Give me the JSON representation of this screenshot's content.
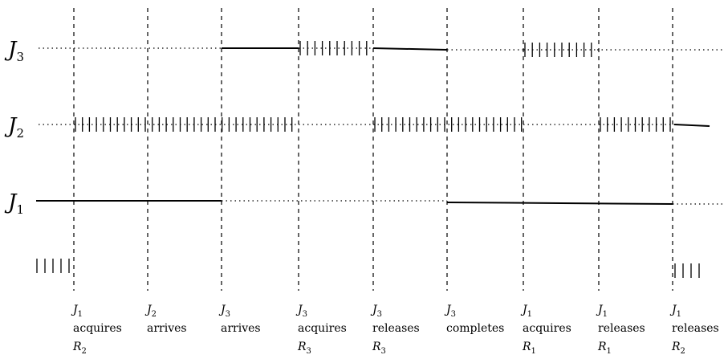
{
  "jobs": [
    {
      "name": "J",
      "sub": "3"
    },
    {
      "name": "J",
      "sub": "2"
    },
    {
      "name": "J",
      "sub": "1"
    }
  ],
  "events": [
    {
      "sym": "J",
      "sub": "1",
      "word": "acquires",
      "res": "R",
      "res_sub": "2"
    },
    {
      "sym": "J",
      "sub": "2",
      "word": "arrives",
      "res": "",
      "res_sub": ""
    },
    {
      "sym": "J",
      "sub": "3",
      "word": "arrives",
      "res": "",
      "res_sub": ""
    },
    {
      "sym": "J",
      "sub": "3",
      "word": "acquires",
      "res": "R",
      "res_sub": "3"
    },
    {
      "sym": "J",
      "sub": "3",
      "word": "releases",
      "res": "R",
      "res_sub": "3"
    },
    {
      "sym": "J",
      "sub": "3",
      "word": "completes",
      "res": "",
      "res_sub": ""
    },
    {
      "sym": "J",
      "sub": "1",
      "word": "acquires",
      "res": "R",
      "res_sub": "1"
    },
    {
      "sym": "J",
      "sub": "1",
      "word": "releases",
      "res": "R",
      "res_sub": "1"
    },
    {
      "sym": "J",
      "sub": "1",
      "word": "releases",
      "res": "R",
      "res_sub": "2"
    }
  ]
}
